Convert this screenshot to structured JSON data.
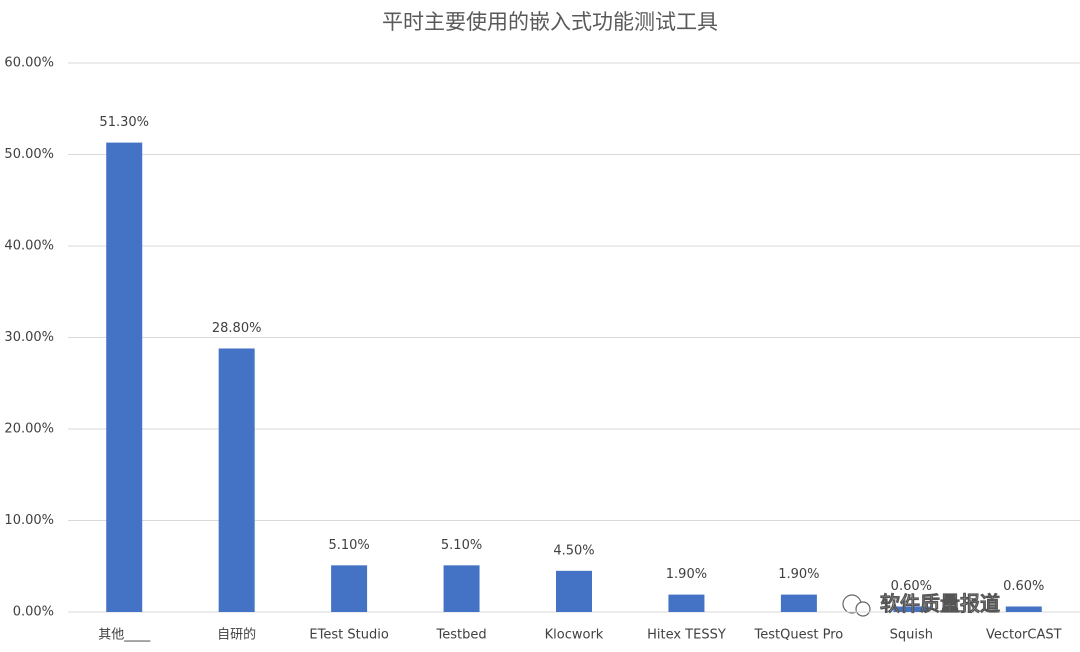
{
  "chart_data": {
    "type": "bar",
    "title": "平时主要使用的嵌入式功能测试工具",
    "categories": [
      "其他____",
      "自研的",
      "ETest Studio",
      "Testbed",
      "Klocwork",
      "Hitex TESSY",
      "TestQuest Pro",
      "Squish",
      "VectorCAST"
    ],
    "values": [
      51.3,
      28.8,
      5.1,
      5.1,
      4.5,
      1.9,
      1.9,
      0.6,
      0.6
    ],
    "value_labels": [
      "51.30%",
      "28.80%",
      "5.10%",
      "5.10%",
      "4.50%",
      "1.90%",
      "1.90%",
      "0.60%",
      "0.60%"
    ],
    "color": "#4472c4",
    "ylim": [
      0,
      60
    ],
    "yticks": [
      {
        "value": 0,
        "label": "0.00%"
      },
      {
        "value": 10,
        "label": "10.00%"
      },
      {
        "value": 20,
        "label": "20.00%"
      },
      {
        "value": 30,
        "label": "30.00%"
      },
      {
        "value": 40,
        "label": "40.00%"
      },
      {
        "value": 50,
        "label": "50.00%"
      },
      {
        "value": 60,
        "label": "60.00%"
      }
    ],
    "grid": true,
    "watermark": "软件质量报道"
  }
}
